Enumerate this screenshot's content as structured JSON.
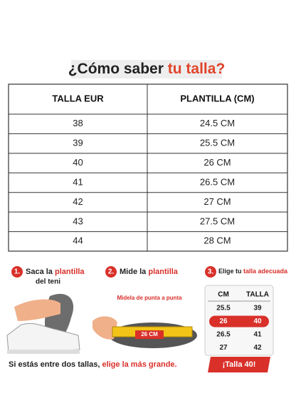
{
  "title": {
    "lead": "¿Cómo saber",
    "accent": "tu talla?"
  },
  "table": {
    "header": [
      "TALLA EUR",
      "PLANTILLA (CM)"
    ],
    "rows": [
      [
        "38",
        "24.5 CM"
      ],
      [
        "39",
        "25.5 CM"
      ],
      [
        "40",
        "26 CM"
      ],
      [
        "41",
        "26.5 CM"
      ],
      [
        "42",
        "27 CM"
      ],
      [
        "43",
        "27.5 CM"
      ],
      [
        "44",
        "28 CM"
      ]
    ]
  },
  "steps": [
    {
      "number": "1.",
      "parts": [
        "Saca la",
        "plantilla",
        "del teni"
      ]
    },
    {
      "number": "2.",
      "parts": [
        "Mide la",
        "plantilla"
      ]
    },
    {
      "number": "3.",
      "parts": [
        "Elige tu",
        "talla adecuada"
      ]
    }
  ],
  "measure_note": "Midela de punta a punta",
  "ruler_label": "26 CM",
  "mini_table": {
    "header": [
      "CM",
      "TALLA"
    ],
    "rows": [
      [
        "25.5",
        "39"
      ],
      [
        "26",
        "40"
      ],
      [
        "26.5",
        "41"
      ],
      [
        "27",
        "42"
      ]
    ]
  },
  "footer": {
    "lead": "Si estás entre dos tallas,",
    "accent": "elige la más grande.",
    "badge": "¡Talla 40!"
  }
}
